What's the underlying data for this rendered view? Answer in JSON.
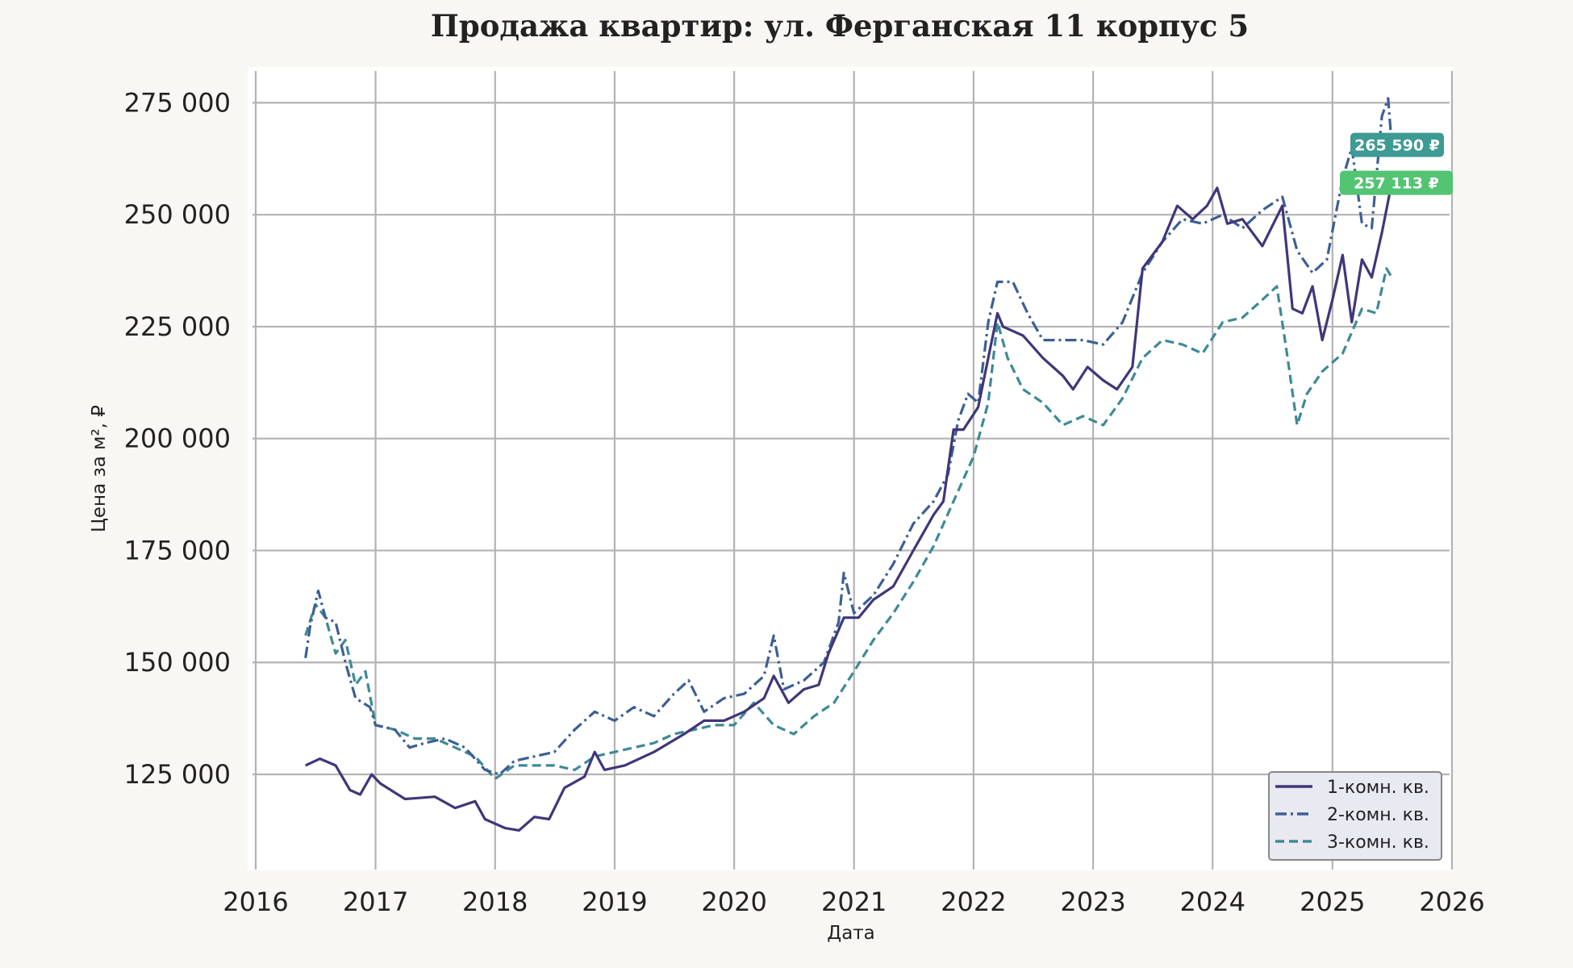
{
  "chart_data": {
    "type": "line",
    "title": "Продажа квартир: ул. Ферганская 11 корпус 5",
    "xlabel": "Дата",
    "ylabel": "Цена за м², ₽",
    "xlim": [
      "2016-01-01",
      "2026-01-01"
    ],
    "ylim": [
      105000,
      283000
    ],
    "x_ticks": [
      "2016",
      "2017",
      "2018",
      "2019",
      "2020",
      "2021",
      "2022",
      "2023",
      "2024",
      "2025",
      "2026"
    ],
    "y_ticks": [
      125000,
      150000,
      175000,
      200000,
      225000,
      250000,
      275000
    ],
    "y_tick_labels": [
      "125 000",
      "150 000",
      "175 000",
      "200 000",
      "225 000",
      "250 000",
      "275 000"
    ],
    "grid": true,
    "legend_position": "bottom-right",
    "series": [
      {
        "name": "1-комн. кв.",
        "color": "#3f3779",
        "style": "solid",
        "points": [
          [
            "2016-06-01",
            127000
          ],
          [
            "2016-07-15",
            128500
          ],
          [
            "2016-09-01",
            127000
          ],
          [
            "2016-10-15",
            121500
          ],
          [
            "2016-11-15",
            120500
          ],
          [
            "2016-12-20",
            125000
          ],
          [
            "2017-01-15",
            123000
          ],
          [
            "2017-04-01",
            119500
          ],
          [
            "2017-07-01",
            120000
          ],
          [
            "2017-09-01",
            117500
          ],
          [
            "2017-11-01",
            119000
          ],
          [
            "2017-12-01",
            115000
          ],
          [
            "2018-02-01",
            113000
          ],
          [
            "2018-03-15",
            112500
          ],
          [
            "2018-05-01",
            115500
          ],
          [
            "2018-06-15",
            115000
          ],
          [
            "2018-08-01",
            122000
          ],
          [
            "2018-10-01",
            124500
          ],
          [
            "2018-11-01",
            130000
          ],
          [
            "2018-12-01",
            126000
          ],
          [
            "2019-02-01",
            127000
          ],
          [
            "2019-05-01",
            130000
          ],
          [
            "2019-08-01",
            134000
          ],
          [
            "2019-10-01",
            137000
          ],
          [
            "2019-12-01",
            137000
          ],
          [
            "2020-02-01",
            139000
          ],
          [
            "2020-04-01",
            142000
          ],
          [
            "2020-05-01",
            147000
          ],
          [
            "2020-06-15",
            141000
          ],
          [
            "2020-08-01",
            144000
          ],
          [
            "2020-09-15",
            145000
          ],
          [
            "2020-10-15",
            152000
          ],
          [
            "2020-12-01",
            160000
          ],
          [
            "2021-01-15",
            160000
          ],
          [
            "2021-03-01",
            164000
          ],
          [
            "2021-05-01",
            167000
          ],
          [
            "2021-07-01",
            175000
          ],
          [
            "2021-09-01",
            183000
          ],
          [
            "2021-10-01",
            186000
          ],
          [
            "2021-11-01",
            202000
          ],
          [
            "2021-12-01",
            202000
          ],
          [
            "2022-01-15",
            207000
          ],
          [
            "2022-02-15",
            218000
          ],
          [
            "2022-03-15",
            228000
          ],
          [
            "2022-04-01",
            225000
          ],
          [
            "2022-06-01",
            223000
          ],
          [
            "2022-08-01",
            218000
          ],
          [
            "2022-10-01",
            214000
          ],
          [
            "2022-11-01",
            211000
          ],
          [
            "2022-12-15",
            216000
          ],
          [
            "2023-02-01",
            213000
          ],
          [
            "2023-03-15",
            211000
          ],
          [
            "2023-05-01",
            216000
          ],
          [
            "2023-06-01",
            238000
          ],
          [
            "2023-08-01",
            244000
          ],
          [
            "2023-09-15",
            252000
          ],
          [
            "2023-11-01",
            249000
          ],
          [
            "2023-12-15",
            252000
          ],
          [
            "2024-01-15",
            256000
          ],
          [
            "2024-02-15",
            248000
          ],
          [
            "2024-04-01",
            249000
          ],
          [
            "2024-06-01",
            243000
          ],
          [
            "2024-08-01",
            252000
          ],
          [
            "2024-09-01",
            229000
          ],
          [
            "2024-10-01",
            228000
          ],
          [
            "2024-11-01",
            234000
          ],
          [
            "2024-12-01",
            222000
          ],
          [
            "2025-01-01",
            231000
          ],
          [
            "2025-02-01",
            241000
          ],
          [
            "2025-03-01",
            226000
          ],
          [
            "2025-04-01",
            240000
          ],
          [
            "2025-05-01",
            236000
          ],
          [
            "2025-06-01",
            246000
          ],
          [
            "2025-07-01",
            257113
          ]
        ]
      },
      {
        "name": "2-комн. кв.",
        "color": "#3c5f93",
        "style": "dashdot",
        "points": [
          [
            "2016-06-01",
            151000
          ],
          [
            "2016-06-15",
            158000
          ],
          [
            "2016-07-10",
            166000
          ],
          [
            "2016-08-01",
            160000
          ],
          [
            "2016-09-01",
            159000
          ],
          [
            "2016-10-01",
            150000
          ],
          [
            "2016-11-01",
            142000
          ],
          [
            "2016-12-15",
            140000
          ],
          [
            "2017-01-01",
            136000
          ],
          [
            "2017-03-01",
            135000
          ],
          [
            "2017-04-15",
            131000
          ],
          [
            "2017-06-01",
            132000
          ],
          [
            "2017-08-01",
            133000
          ],
          [
            "2017-10-01",
            131000
          ],
          [
            "2017-12-01",
            126000
          ],
          [
            "2018-01-15",
            125000
          ],
          [
            "2018-03-01",
            128000
          ],
          [
            "2018-05-01",
            129000
          ],
          [
            "2018-07-01",
            130000
          ],
          [
            "2018-09-01",
            135000
          ],
          [
            "2018-11-01",
            139000
          ],
          [
            "2019-01-01",
            137000
          ],
          [
            "2019-03-01",
            140000
          ],
          [
            "2019-05-01",
            138000
          ],
          [
            "2019-07-01",
            143000
          ],
          [
            "2019-08-15",
            146000
          ],
          [
            "2019-10-01",
            139000
          ],
          [
            "2019-12-01",
            142000
          ],
          [
            "2020-02-01",
            143000
          ],
          [
            "2020-04-01",
            147000
          ],
          [
            "2020-05-01",
            156000
          ],
          [
            "2020-06-01",
            144000
          ],
          [
            "2020-08-01",
            146000
          ],
          [
            "2020-10-01",
            150000
          ],
          [
            "2020-11-15",
            159000
          ],
          [
            "2020-12-01",
            170000
          ],
          [
            "2021-01-01",
            161000
          ],
          [
            "2021-03-01",
            165000
          ],
          [
            "2021-05-01",
            172000
          ],
          [
            "2021-07-01",
            181000
          ],
          [
            "2021-09-01",
            186000
          ],
          [
            "2021-10-15",
            192000
          ],
          [
            "2021-11-15",
            204000
          ],
          [
            "2021-12-15",
            210000
          ],
          [
            "2022-01-15",
            208000
          ],
          [
            "2022-02-15",
            226000
          ],
          [
            "2022-03-15",
            235000
          ],
          [
            "2022-05-01",
            235000
          ],
          [
            "2022-06-15",
            228000
          ],
          [
            "2022-08-01",
            222000
          ],
          [
            "2022-10-01",
            222000
          ],
          [
            "2022-12-01",
            222000
          ],
          [
            "2023-02-01",
            221000
          ],
          [
            "2023-04-01",
            226000
          ],
          [
            "2023-06-01",
            237000
          ],
          [
            "2023-08-01",
            244000
          ],
          [
            "2023-10-01",
            249000
          ],
          [
            "2023-12-01",
            248000
          ],
          [
            "2024-02-01",
            250000
          ],
          [
            "2024-04-01",
            247000
          ],
          [
            "2024-06-01",
            251000
          ],
          [
            "2024-08-01",
            254000
          ],
          [
            "2024-09-15",
            242000
          ],
          [
            "2024-11-01",
            237000
          ],
          [
            "2024-12-15",
            240000
          ],
          [
            "2025-02-01",
            258000
          ],
          [
            "2025-03-01",
            265000
          ],
          [
            "2025-04-01",
            248000
          ],
          [
            "2025-05-01",
            247000
          ],
          [
            "2025-06-01",
            272000
          ],
          [
            "2025-06-20",
            276000
          ],
          [
            "2025-07-01",
            265590
          ]
        ]
      },
      {
        "name": "3-комн. кв.",
        "color": "#3e8a96",
        "style": "dashed",
        "points": [
          [
            "2016-06-01",
            156000
          ],
          [
            "2016-07-01",
            163000
          ],
          [
            "2016-08-01",
            160000
          ],
          [
            "2016-09-01",
            152000
          ],
          [
            "2016-10-01",
            155000
          ],
          [
            "2016-11-01",
            145000
          ],
          [
            "2016-12-01",
            148000
          ],
          [
            "2017-01-01",
            136000
          ],
          [
            "2017-03-01",
            135000
          ],
          [
            "2017-05-01",
            133000
          ],
          [
            "2017-07-01",
            133000
          ],
          [
            "2017-09-01",
            131000
          ],
          [
            "2017-11-01",
            129000
          ],
          [
            "2018-01-01",
            124000
          ],
          [
            "2018-03-01",
            127000
          ],
          [
            "2018-05-01",
            127000
          ],
          [
            "2018-07-01",
            127000
          ],
          [
            "2018-09-01",
            126000
          ],
          [
            "2018-11-01",
            129000
          ],
          [
            "2019-01-01",
            130000
          ],
          [
            "2019-03-01",
            131000
          ],
          [
            "2019-05-01",
            132000
          ],
          [
            "2019-07-01",
            134000
          ],
          [
            "2019-09-01",
            135000
          ],
          [
            "2019-11-01",
            136000
          ],
          [
            "2020-01-01",
            136000
          ],
          [
            "2020-03-01",
            141000
          ],
          [
            "2020-05-01",
            136000
          ],
          [
            "2020-07-01",
            134000
          ],
          [
            "2020-09-01",
            138000
          ],
          [
            "2020-11-01",
            141000
          ],
          [
            "2021-01-01",
            148000
          ],
          [
            "2021-03-01",
            155000
          ],
          [
            "2021-05-01",
            161000
          ],
          [
            "2021-07-01",
            168000
          ],
          [
            "2021-09-01",
            176000
          ],
          [
            "2021-11-01",
            186000
          ],
          [
            "2022-01-01",
            196000
          ],
          [
            "2022-02-15",
            208000
          ],
          [
            "2022-03-15",
            226000
          ],
          [
            "2022-04-15",
            218000
          ],
          [
            "2022-06-01",
            211000
          ],
          [
            "2022-08-01",
            208000
          ],
          [
            "2022-10-01",
            203000
          ],
          [
            "2022-12-01",
            205000
          ],
          [
            "2023-02-01",
            203000
          ],
          [
            "2023-04-01",
            209000
          ],
          [
            "2023-06-01",
            218000
          ],
          [
            "2023-08-01",
            222000
          ],
          [
            "2023-10-01",
            221000
          ],
          [
            "2023-12-01",
            219000
          ],
          [
            "2024-02-01",
            226000
          ],
          [
            "2024-04-01",
            227000
          ],
          [
            "2024-06-01",
            231000
          ],
          [
            "2024-07-15",
            234000
          ],
          [
            "2024-08-15",
            219000
          ],
          [
            "2024-09-15",
            203000
          ],
          [
            "2024-10-15",
            210000
          ],
          [
            "2024-12-01",
            215000
          ],
          [
            "2025-02-01",
            219000
          ],
          [
            "2025-04-01",
            229000
          ],
          [
            "2025-05-15",
            228000
          ],
          [
            "2025-06-15",
            238000
          ],
          [
            "2025-07-01",
            236000
          ]
        ]
      }
    ],
    "annotations": [
      {
        "label": "265 590 ₽",
        "date": "2025-07-01",
        "value": 265590,
        "color": "#3e9a93"
      },
      {
        "label": "257 113 ₽",
        "date": "2025-07-01",
        "value": 257113,
        "color": "#52c472"
      }
    ]
  }
}
